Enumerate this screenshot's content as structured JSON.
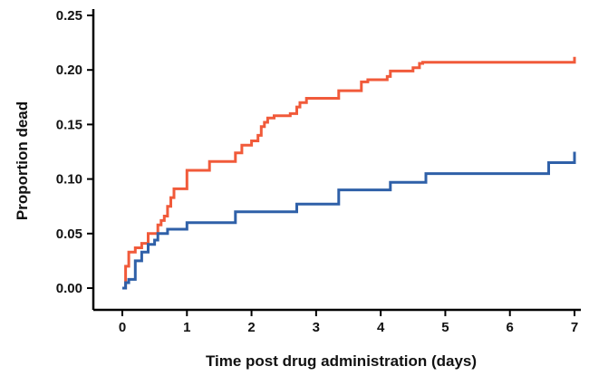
{
  "chart_data": {
    "type": "line",
    "title": "",
    "xlabel": "Time post drug administration (days)",
    "ylabel": "Proportion dead",
    "xlim": [
      0,
      7
    ],
    "ylim": [
      0,
      0.25
    ],
    "x_ticks": [
      "0",
      "1",
      "2",
      "3",
      "4",
      "5",
      "6",
      "7"
    ],
    "y_ticks": [
      "0.00",
      "0.05",
      "0.10",
      "0.15",
      "0.20",
      "0.25"
    ],
    "x_tick_values": [
      0,
      1,
      2,
      3,
      4,
      5,
      6,
      7
    ],
    "y_tick_values": [
      0,
      0.05,
      0.1,
      0.15,
      0.2,
      0.25
    ],
    "grid": false,
    "legend": "none",
    "step": true,
    "series": [
      {
        "color": "#f15a3a",
        "x": [
          0.0,
          0.05,
          0.1,
          0.2,
          0.3,
          0.4,
          0.55,
          0.6,
          0.65,
          0.7,
          0.75,
          0.8,
          1.0,
          1.2,
          1.35,
          1.75,
          1.85,
          2.0,
          2.1,
          2.15,
          2.2,
          2.25,
          2.35,
          2.6,
          2.7,
          2.75,
          2.85,
          3.2,
          3.35,
          3.7,
          3.8,
          4.1,
          4.15,
          4.5,
          4.6,
          4.65,
          6.9,
          7.0
        ],
        "y": [
          0.0,
          0.02,
          0.033,
          0.037,
          0.041,
          0.05,
          0.058,
          0.062,
          0.066,
          0.075,
          0.083,
          0.091,
          0.108,
          0.108,
          0.116,
          0.124,
          0.131,
          0.135,
          0.14,
          0.148,
          0.152,
          0.156,
          0.158,
          0.16,
          0.166,
          0.17,
          0.174,
          0.174,
          0.181,
          0.189,
          0.191,
          0.194,
          0.199,
          0.202,
          0.206,
          0.207,
          0.207,
          0.212
        ]
      },
      {
        "color": "#2f60a8",
        "x": [
          0.0,
          0.05,
          0.1,
          0.2,
          0.3,
          0.4,
          0.5,
          0.55,
          0.7,
          0.8,
          1.0,
          1.75,
          2.7,
          3.35,
          4.15,
          4.7,
          6.6,
          7.0
        ],
        "y": [
          0.0,
          0.005,
          0.008,
          0.025,
          0.033,
          0.04,
          0.044,
          0.05,
          0.054,
          0.054,
          0.06,
          0.07,
          0.077,
          0.09,
          0.097,
          0.105,
          0.115,
          0.125
        ]
      }
    ]
  }
}
